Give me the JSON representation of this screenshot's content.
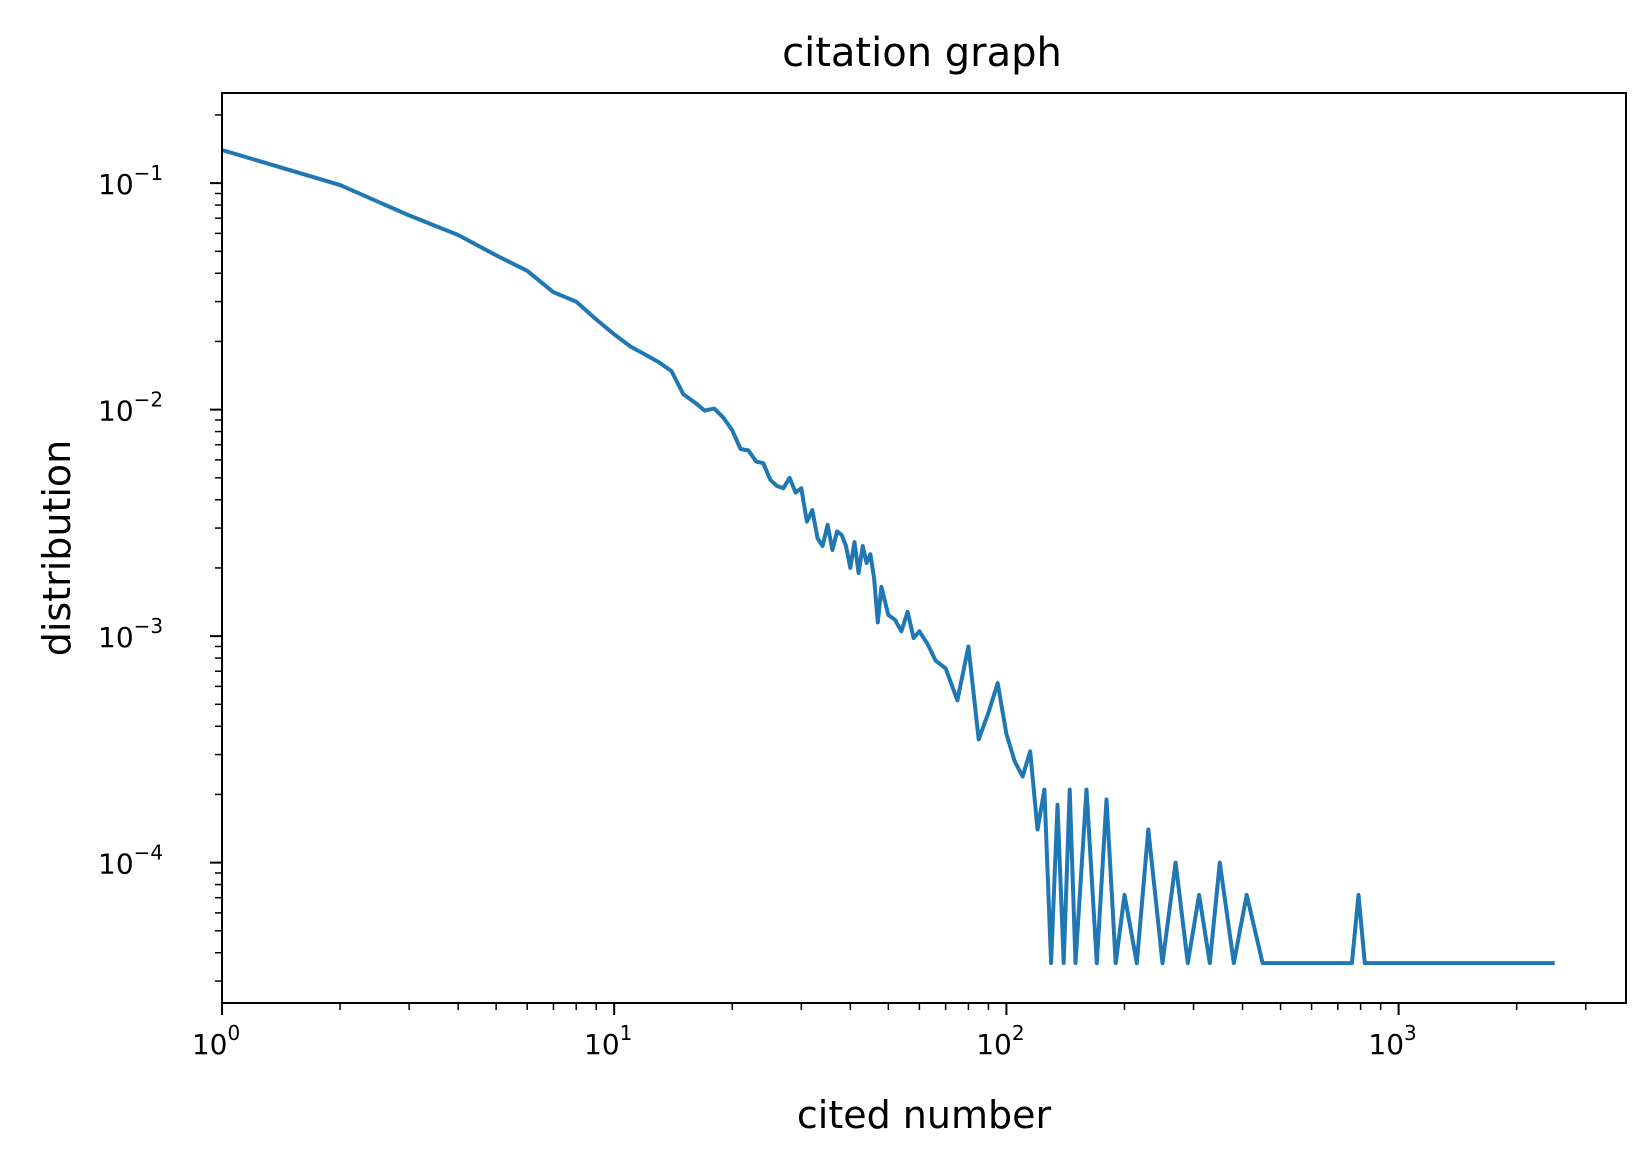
{
  "chart_data": {
    "type": "line",
    "title": "citation graph",
    "xlabel": "cited number",
    "ylabel": "distribution",
    "xscale": "log",
    "yscale": "log",
    "xlim": [
      1,
      3800
    ],
    "ylim": [
      2.4e-05,
      0.25
    ],
    "grid": false,
    "legend": "none",
    "line_color": "#1f77b4",
    "x_ticks": [
      {
        "base": "10",
        "exp": "0",
        "value": 1
      },
      {
        "base": "10",
        "exp": "1",
        "value": 10
      },
      {
        "base": "10",
        "exp": "2",
        "value": 100
      },
      {
        "base": "10",
        "exp": "3",
        "value": 1000
      }
    ],
    "y_ticks": [
      {
        "base": "10",
        "exp": "−1",
        "value": 0.1
      },
      {
        "base": "10",
        "exp": "−2",
        "value": 0.01
      },
      {
        "base": "10",
        "exp": "−3",
        "value": 0.001
      },
      {
        "base": "10",
        "exp": "−4",
        "value": 0.0001
      }
    ],
    "series": [
      {
        "x": [
          1,
          2,
          3,
          4,
          5,
          6,
          7,
          8,
          9,
          10,
          11,
          12,
          13,
          14,
          15,
          16,
          17,
          18,
          19,
          20,
          21,
          22,
          23,
          24,
          25,
          26,
          27,
          28,
          29,
          30,
          31,
          32,
          33,
          34,
          35,
          36,
          37,
          38,
          39,
          40,
          41,
          42,
          43,
          44,
          45,
          46,
          47,
          48,
          50,
          52,
          54,
          56,
          58,
          60,
          63,
          66,
          70,
          75,
          80,
          85,
          90,
          95,
          100,
          105,
          110,
          115,
          120,
          125,
          130,
          135,
          140,
          145,
          150,
          160,
          170,
          180,
          190,
          200,
          215,
          230,
          250,
          270,
          290,
          310,
          330,
          350,
          380,
          410,
          450,
          500,
          550,
          600,
          650,
          700,
          760,
          790,
          820,
          900,
          1000,
          1200,
          1500,
          2000,
          2500
        ],
        "y": [
          0.14,
          0.098,
          0.072,
          0.059,
          0.048,
          0.041,
          0.033,
          0.03,
          0.025,
          0.0215,
          0.019,
          0.0175,
          0.0162,
          0.0148,
          0.0117,
          0.0108,
          0.0099,
          0.0101,
          0.0092,
          0.0081,
          0.0067,
          0.0066,
          0.0059,
          0.0058,
          0.0049,
          0.0046,
          0.0045,
          0.005,
          0.0043,
          0.0045,
          0.0032,
          0.0036,
          0.0027,
          0.0025,
          0.0031,
          0.0024,
          0.0029,
          0.0028,
          0.0025,
          0.002,
          0.0026,
          0.0019,
          0.0025,
          0.0021,
          0.0023,
          0.0018,
          0.00115,
          0.00165,
          0.00124,
          0.00118,
          0.00105,
          0.00128,
          0.00098,
          0.00105,
          0.00092,
          0.00078,
          0.00072,
          0.00052,
          0.0009,
          0.00035,
          0.00046,
          0.00062,
          0.00037,
          0.00028,
          0.00024,
          0.00031,
          0.00014,
          0.00021,
          3.6e-05,
          0.00018,
          3.6e-05,
          0.00021,
          3.6e-05,
          0.00021,
          3.6e-05,
          0.00019,
          3.6e-05,
          7.2e-05,
          3.6e-05,
          0.00014,
          3.6e-05,
          0.0001,
          3.6e-05,
          7.2e-05,
          3.6e-05,
          0.0001,
          3.6e-05,
          7.2e-05,
          3.6e-05,
          3.6e-05,
          3.6e-05,
          3.6e-05,
          3.6e-05,
          3.6e-05,
          3.6e-05,
          7.2e-05,
          3.6e-05,
          3.6e-05,
          3.6e-05,
          3.6e-05,
          3.6e-05,
          3.6e-05,
          3.6e-05
        ]
      }
    ]
  }
}
